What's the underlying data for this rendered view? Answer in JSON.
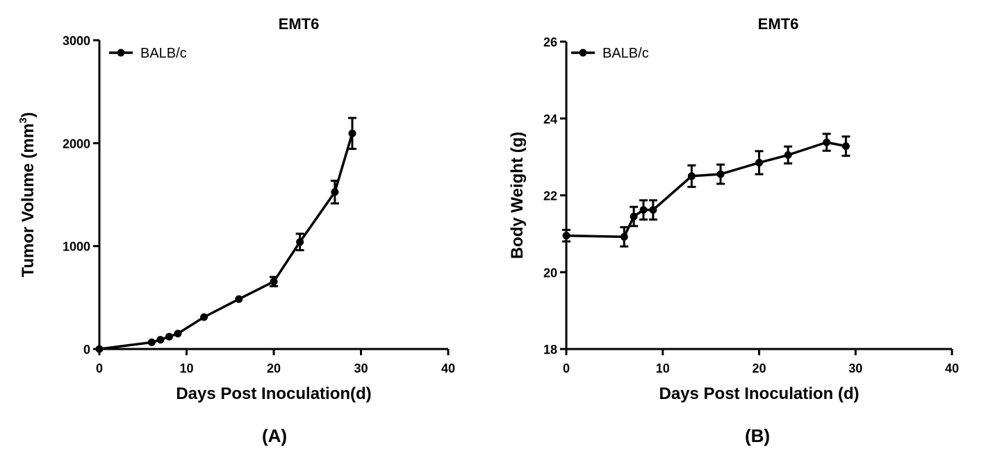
{
  "chart_data": [
    {
      "type": "line",
      "title": "EMT6",
      "panel_label": "(A)",
      "xlabel": "Days Post Inoculation(d)",
      "ylabel": "Tumor Volume (mm",
      "ylabel_superscript": "3",
      "ylabel_suffix": ")",
      "xlim": [
        0,
        40
      ],
      "ylim": [
        0,
        3000
      ],
      "xticks": [
        0,
        10,
        20,
        30,
        40
      ],
      "yticks": [
        0,
        1000,
        2000,
        3000
      ],
      "legend_position": "top-left",
      "grid": false,
      "series": [
        {
          "name": "BALB/c",
          "x": [
            0,
            6,
            7,
            8,
            9,
            12,
            16,
            20,
            23,
            27,
            29
          ],
          "y": [
            0,
            65,
            90,
            120,
            150,
            310,
            485,
            655,
            1040,
            1525,
            2095
          ],
          "err": [
            0,
            0,
            0,
            0,
            0,
            0,
            0,
            45,
            80,
            110,
            150
          ]
        }
      ]
    },
    {
      "type": "line",
      "title": "EMT6",
      "panel_label": "(B)",
      "xlabel": "Days Post Inoculation (d)",
      "ylabel": "Body Weight (g)",
      "xlim": [
        0,
        40
      ],
      "ylim": [
        18,
        26
      ],
      "xticks": [
        0,
        10,
        20,
        30,
        40
      ],
      "yticks": [
        18,
        20,
        22,
        24,
        26
      ],
      "legend_position": "top-left",
      "grid": false,
      "series": [
        {
          "name": "BALB/c",
          "x": [
            0,
            6,
            7,
            8,
            9,
            13,
            16,
            20,
            23,
            27,
            29
          ],
          "y": [
            20.95,
            20.92,
            21.45,
            21.62,
            21.62,
            22.5,
            22.55,
            22.85,
            23.05,
            23.38,
            23.28
          ],
          "err": [
            0.15,
            0.25,
            0.25,
            0.25,
            0.25,
            0.28,
            0.25,
            0.3,
            0.22,
            0.22,
            0.25
          ]
        }
      ]
    }
  ]
}
